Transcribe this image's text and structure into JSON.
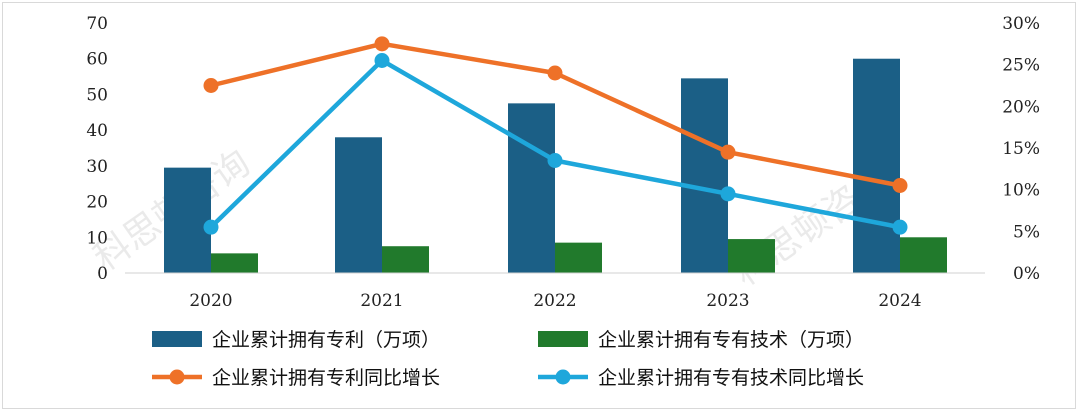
{
  "chart_data": {
    "type": "bar",
    "categories": [
      "2020",
      "2021",
      "2022",
      "2023",
      "2024"
    ],
    "series": [
      {
        "name": "企业累计拥有专利（万项）",
        "kind": "bar",
        "axis": "left",
        "color": "#1b5f86",
        "values": [
          29.5,
          38,
          47.5,
          54.5,
          60
        ]
      },
      {
        "name": "企业累计拥有专有技术（万项）",
        "kind": "bar",
        "axis": "left",
        "color": "#217a2c",
        "values": [
          5.5,
          7.5,
          8.5,
          9.5,
          10
        ]
      },
      {
        "name": "企业累计拥有专利同比增长",
        "kind": "line",
        "axis": "right",
        "color": "#ee7128",
        "values": [
          22.5,
          27.5,
          24,
          14.5,
          10.5
        ]
      },
      {
        "name": "企业累计拥有专有技术同比增长",
        "kind": "line",
        "axis": "right",
        "color": "#1ea7db",
        "values": [
          5.5,
          25.5,
          13.5,
          9.5,
          5.5
        ]
      }
    ],
    "y_left": {
      "min": 0,
      "max": 70,
      "ticks": [
        "0",
        "10",
        "20",
        "30",
        "40",
        "50",
        "60",
        "70"
      ]
    },
    "y_right": {
      "min": 0,
      "max": 30,
      "ticks": [
        "0%",
        "5%",
        "10%",
        "15%",
        "20%",
        "25%",
        "30%"
      ]
    },
    "legend_position": "bottom",
    "watermark": "科思顿咨询"
  }
}
